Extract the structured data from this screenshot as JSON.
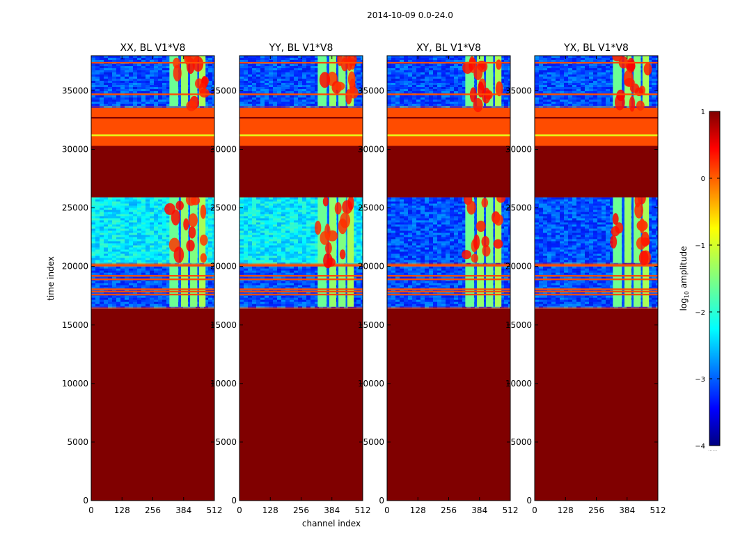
{
  "figure_title": "2014-10-09 0.0-24.0",
  "chart_data": {
    "type": "heatmap",
    "title": "2014-10-09 0.0-24.0",
    "xlabel": "channel index",
    "ylabel": "time index",
    "xlim": [
      0,
      512
    ],
    "ylim": [
      0,
      38000
    ],
    "x_ticks": [
      0,
      128,
      256,
      384,
      512
    ],
    "y_ticks": [
      0,
      5000,
      10000,
      15000,
      20000,
      25000,
      30000,
      35000
    ],
    "colormap": "jet",
    "colorbar": {
      "label": "log10 amplitude",
      "label_prefix": "log",
      "label_sub": "10",
      "label_suffix": " amplitude",
      "range": [
        -4,
        1
      ],
      "ticks": [
        1,
        0,
        -1,
        -2,
        -3,
        -4
      ],
      "tick_labels": [
        "1",
        "0",
        "−1",
        "−2",
        "−3",
        "−4"
      ],
      "bottom_mark": "......"
    },
    "panels": [
      {
        "title": "XX, BL V1*V8",
        "polarization": "XX",
        "baseline": "V1*V8",
        "cross_pol": false
      },
      {
        "title": "YY, BL V1*V8",
        "polarization": "YY",
        "baseline": "V1*V8",
        "cross_pol": false
      },
      {
        "title": "XY, BL V1*V8",
        "polarization": "XY",
        "baseline": "V1*V8",
        "cross_pol": true
      },
      {
        "title": "YX, BL V1*V8",
        "polarization": "YX",
        "baseline": "V1*V8",
        "cross_pol": true
      }
    ],
    "time_segments": [
      {
        "t0": 0,
        "t1": 16400,
        "log10_amplitude": 1.0,
        "description": "flagged"
      },
      {
        "t0": 16400,
        "t1": 16550,
        "log10_amplitude": 0.0,
        "description": "orange band"
      },
      {
        "t0": 16550,
        "t1": 20000,
        "log10_amplitude": -3.0,
        "description": "data"
      },
      {
        "t0": 20000,
        "t1": 20300,
        "log10_amplitude": 0.0,
        "description": "orange band"
      },
      {
        "t0": 20300,
        "t1": 25900,
        "log10_amplitude": -2.2,
        "description": "data"
      },
      {
        "t0": 25900,
        "t1": 30300,
        "log10_amplitude": 1.0,
        "description": "flagged"
      },
      {
        "t0": 30300,
        "t1": 33700,
        "log10_amplitude": 0.0,
        "description": "orange block"
      },
      {
        "t0": 33700,
        "t1": 38000,
        "log10_amplitude": -3.0,
        "description": "data"
      }
    ],
    "horizontal_lines": [
      {
        "t": 17600,
        "log10_amplitude": 0.0
      },
      {
        "t": 17850,
        "log10_amplitude": 0.0
      },
      {
        "t": 18050,
        "log10_amplitude": 0.0
      },
      {
        "t": 18900,
        "log10_amplitude": 0.0
      },
      {
        "t": 19200,
        "log10_amplitude": 0.0
      },
      {
        "t": 32700,
        "log10_amplitude": 1.0
      },
      {
        "t": 31200,
        "log10_amplitude": -1.0
      },
      {
        "t": 34700,
        "log10_amplitude": 0.0
      },
      {
        "t": 37400,
        "log10_amplitude": 0.0
      }
    ],
    "rfi_channel_bands": [
      {
        "c0": 325,
        "c1": 362,
        "log10_amplitude": -1.6
      },
      {
        "c0": 365,
        "c1": 372,
        "log10_amplitude": -3.0
      },
      {
        "c0": 373,
        "c1": 402,
        "log10_amplitude": -1.4
      },
      {
        "c0": 405,
        "c1": 410,
        "log10_amplitude": -3.0
      },
      {
        "c0": 411,
        "c1": 441,
        "log10_amplitude": -1.5
      },
      {
        "c0": 444,
        "c1": 447,
        "log10_amplitude": -3.0
      },
      {
        "c0": 448,
        "c1": 475,
        "log10_amplitude": -1.3
      }
    ],
    "rfi_channel_range": [
      325,
      475
    ]
  }
}
